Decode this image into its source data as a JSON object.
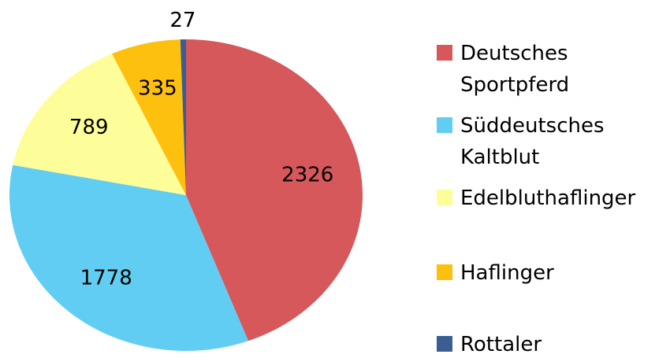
{
  "chart_data": {
    "type": "pie",
    "categories": [
      "Deutsches Sportpferd",
      "Süddeutsches Kaltblut",
      "Edelbluthaflinger",
      "Haflinger",
      "Rottaler"
    ],
    "values": [
      2326,
      1778,
      789,
      335,
      27
    ],
    "colors": [
      "#d6585b",
      "#62cdf3",
      "#fdfd99",
      "#fdc00f",
      "#3a5d93"
    ],
    "legend": "right"
  }
}
